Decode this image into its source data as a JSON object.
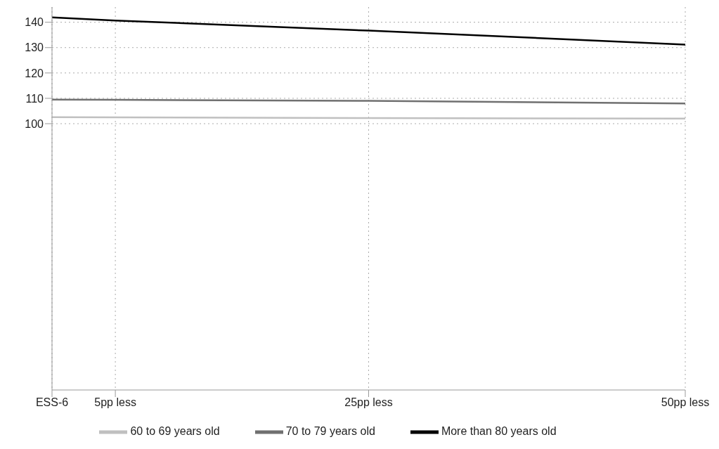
{
  "chart_data": {
    "type": "line",
    "x": [
      0,
      5,
      25,
      50
    ],
    "xticks": [
      {
        "value": 0,
        "label": "ESS-6"
      },
      {
        "value": 5,
        "label": "5pp less"
      },
      {
        "value": 25,
        "label": "25pp less"
      },
      {
        "value": 50,
        "label": "50pp less"
      }
    ],
    "xlim": [
      0,
      50
    ],
    "ylim": [
      -5,
      146
    ],
    "yticks": [
      100,
      110,
      120,
      130,
      140
    ],
    "series": [
      {
        "name": "60 to 69 years old",
        "color": "#c0c0c0",
        "values": [
          102.6,
          102.5,
          102.2,
          102.0
        ]
      },
      {
        "name": "70 to 79 years old",
        "color": "#707070",
        "values": [
          109.5,
          109.4,
          109.0,
          108.0
        ]
      },
      {
        "name": "More than 80 years old",
        "color": "#000000",
        "values": [
          141.9,
          140.7,
          136.7,
          131.2
        ]
      }
    ],
    "grid": true,
    "legend": "bottom",
    "marker": "none",
    "line_style": "solid"
  }
}
